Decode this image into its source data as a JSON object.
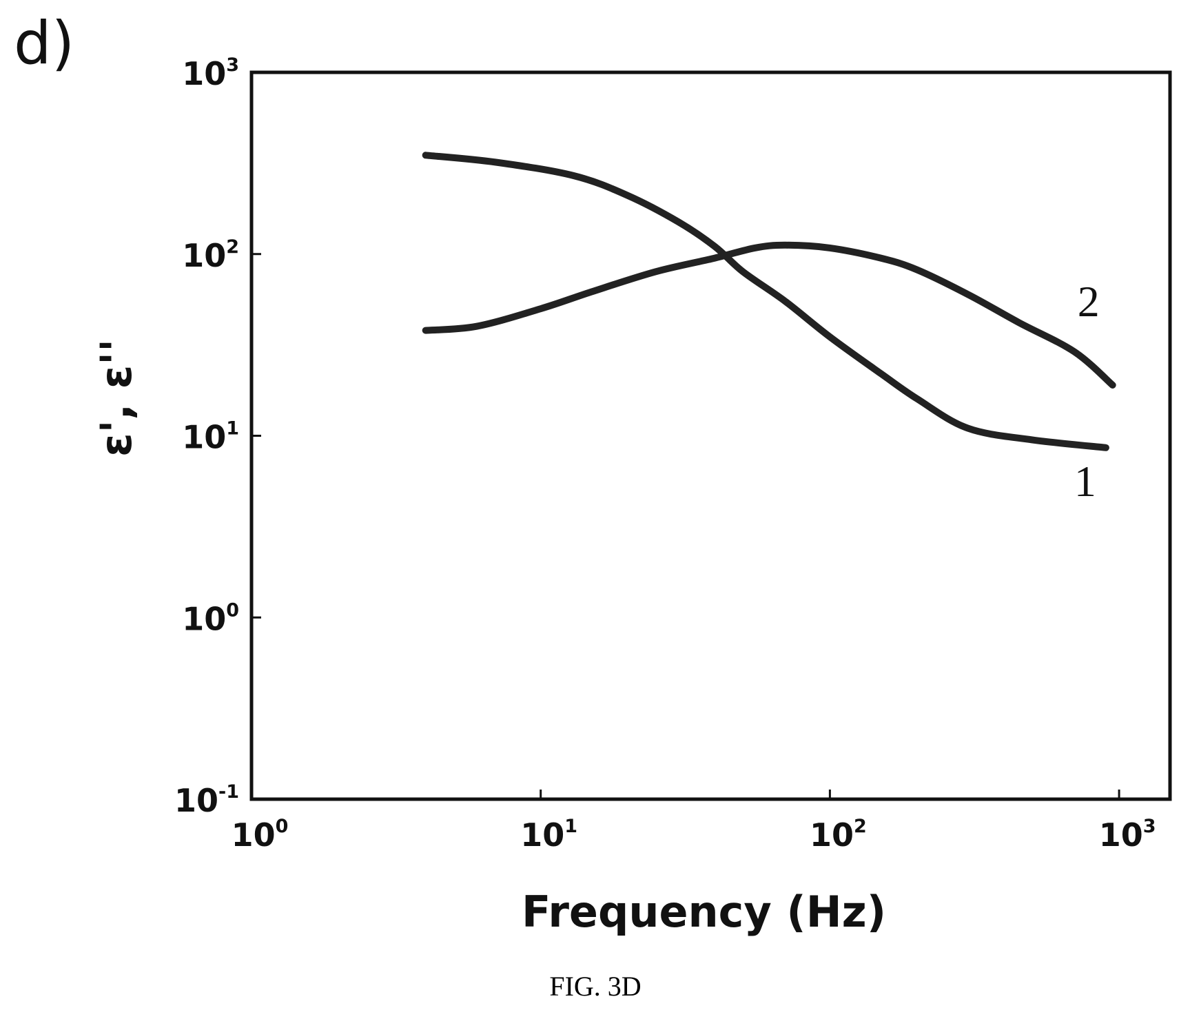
{
  "panel_label": "d)",
  "caption": "FIG. 3D",
  "chart_data": {
    "type": "line",
    "title": "",
    "xlabel": "Frequency (Hz)",
    "ylabel": "ε', ε''",
    "xscale": "log",
    "yscale": "log",
    "xlim": [
      1,
      1500
    ],
    "ylim": [
      0.1,
      1000
    ],
    "grid": false,
    "x_ticks": [
      {
        "value": 1,
        "base": "10",
        "exp": "0"
      },
      {
        "value": 10,
        "base": "10",
        "exp": "1"
      },
      {
        "value": 100,
        "base": "10",
        "exp": "2"
      },
      {
        "value": 1000,
        "base": "10",
        "exp": "3"
      }
    ],
    "y_ticks": [
      {
        "value": 0.1,
        "base": "10",
        "exp": "-1"
      },
      {
        "value": 1,
        "base": "10",
        "exp": "0"
      },
      {
        "value": 10,
        "base": "10",
        "exp": "1"
      },
      {
        "value": 100,
        "base": "10",
        "exp": "2"
      },
      {
        "value": 1000,
        "base": "10",
        "exp": "3"
      }
    ],
    "series": [
      {
        "name": "1",
        "x": [
          4,
          7,
          13,
          20,
          30,
          40,
          50,
          70,
          100,
          150,
          200,
          300,
          500,
          900
        ],
        "y": [
          350,
          320,
          270,
          210,
          150,
          110,
          80,
          55,
          35,
          22,
          16,
          11,
          9.5,
          8.6
        ]
      },
      {
        "name": "2",
        "x": [
          4,
          6,
          10,
          15,
          25,
          40,
          55,
          70,
          100,
          150,
          200,
          300,
          450,
          700,
          950
        ],
        "y": [
          38,
          40,
          50,
          62,
          80,
          95,
          108,
          112,
          108,
          95,
          82,
          60,
          42,
          29,
          19
        ]
      }
    ]
  }
}
